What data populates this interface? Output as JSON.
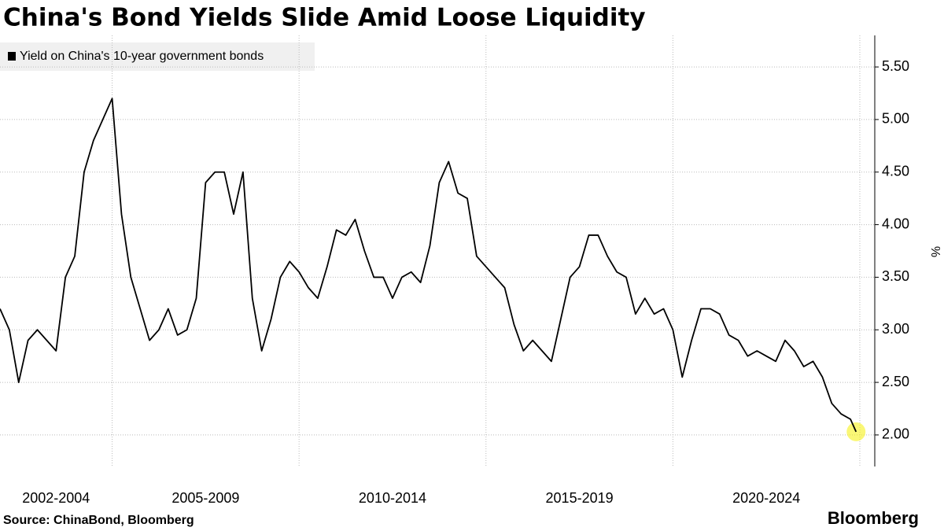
{
  "chart_data": {
    "type": "line",
    "title": "China's Bond Yields Slide Amid Loose Liquidity",
    "y_axis_label": "%",
    "source": "Source: ChinaBond, Bloomberg",
    "brand": "Bloomberg",
    "x_period_labels": [
      "2002-2004",
      "2005-2009",
      "2010-2014",
      "2015-2019",
      "2020-2024"
    ],
    "xlim": [
      2002,
      2025.4
    ],
    "xticks": [
      2005,
      2010,
      2015,
      2020,
      2025
    ],
    "ylim": [
      1.7,
      5.8
    ],
    "yticks": [
      {
        "value": 2,
        "label": "2.00"
      },
      {
        "value": 2.5,
        "label": "2.50"
      },
      {
        "value": 3,
        "label": "3.00"
      },
      {
        "value": 3.5,
        "label": "3.50"
      },
      {
        "value": 4,
        "label": "4.00"
      },
      {
        "value": 4.5,
        "label": "4.50"
      },
      {
        "value": 5,
        "label": "5.00"
      },
      {
        "value": 5.5,
        "label": "5.50"
      }
    ],
    "grid": true,
    "x": [
      2002.0,
      2002.25,
      2002.5,
      2002.75,
      2003.0,
      2003.25,
      2003.5,
      2003.75,
      2004.0,
      2004.25,
      2004.5,
      2004.75,
      2005.0,
      2005.25,
      2005.5,
      2005.75,
      2006.0,
      2006.25,
      2006.5,
      2006.75,
      2007.0,
      2007.25,
      2007.5,
      2007.75,
      2008.0,
      2008.25,
      2008.5,
      2008.75,
      2009.0,
      2009.25,
      2009.5,
      2009.75,
      2010.0,
      2010.25,
      2010.5,
      2010.75,
      2011.0,
      2011.25,
      2011.5,
      2011.75,
      2012.0,
      2012.25,
      2012.5,
      2012.75,
      2013.0,
      2013.25,
      2013.5,
      2013.75,
      2014.0,
      2014.25,
      2014.5,
      2014.75,
      2015.0,
      2015.25,
      2015.5,
      2015.75,
      2016.0,
      2016.25,
      2016.5,
      2016.75,
      2017.0,
      2017.25,
      2017.5,
      2017.75,
      2018.0,
      2018.25,
      2018.5,
      2018.75,
      2019.0,
      2019.25,
      2019.5,
      2019.75,
      2020.0,
      2020.25,
      2020.5,
      2020.75,
      2021.0,
      2021.25,
      2021.5,
      2021.75,
      2022.0,
      2022.25,
      2022.5,
      2022.75,
      2023.0,
      2023.25,
      2023.5,
      2023.75,
      2024.0,
      2024.25,
      2024.5,
      2024.75,
      2024.9
    ],
    "series": [
      {
        "name": "Yield on China's 10-year government bonds",
        "color": "#000000",
        "values": [
          3.2,
          3.0,
          2.5,
          2.9,
          3.0,
          2.9,
          2.8,
          3.5,
          3.7,
          4.5,
          4.8,
          5.0,
          5.2,
          4.1,
          3.5,
          3.2,
          2.9,
          3.0,
          3.2,
          2.95,
          3.0,
          3.3,
          4.4,
          4.5,
          4.5,
          4.1,
          4.5,
          3.3,
          2.8,
          3.1,
          3.5,
          3.65,
          3.55,
          3.4,
          3.3,
          3.6,
          3.95,
          3.9,
          4.05,
          3.75,
          3.5,
          3.5,
          3.3,
          3.5,
          3.55,
          3.45,
          3.8,
          4.4,
          4.6,
          4.3,
          4.25,
          3.7,
          3.6,
          3.5,
          3.4,
          3.05,
          2.8,
          2.9,
          2.8,
          2.7,
          3.1,
          3.5,
          3.6,
          3.9,
          3.9,
          3.7,
          3.55,
          3.5,
          3.15,
          3.3,
          3.15,
          3.2,
          3.0,
          2.55,
          2.9,
          3.2,
          3.2,
          3.15,
          2.95,
          2.9,
          2.75,
          2.8,
          2.75,
          2.7,
          2.9,
          2.8,
          2.65,
          2.7,
          2.55,
          2.3,
          2.2,
          2.15,
          2.03
        ]
      }
    ]
  }
}
